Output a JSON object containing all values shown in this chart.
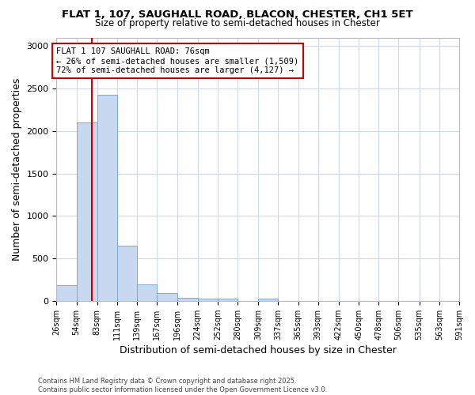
{
  "title1": "FLAT 1, 107, SAUGHALL ROAD, BLACON, CHESTER, CH1 5ET",
  "title2": "Size of property relative to semi-detached houses in Chester",
  "xlabel": "Distribution of semi-detached houses by size in Chester",
  "ylabel": "Number of semi-detached properties",
  "footer1": "Contains HM Land Registry data © Crown copyright and database right 2025.",
  "footer2": "Contains public sector information licensed under the Open Government Licence v3.0.",
  "annotation_title": "FLAT 1 107 SAUGHALL ROAD: 76sqm",
  "annotation_line2": "← 26% of semi-detached houses are smaller (1,509)",
  "annotation_line3": "72% of semi-detached houses are larger (4,127) →",
  "property_size": 76,
  "bar_color": "#c8d8f0",
  "bar_edge_color": "#7aaad4",
  "red_line_color": "#cc0000",
  "annotation_box_edge": "#cc0000",
  "background_color": "#ffffff",
  "grid_color": "#d0d8e8",
  "bins": [
    26,
    54,
    83,
    111,
    139,
    167,
    196,
    224,
    252,
    280,
    309,
    337,
    365,
    393,
    422,
    450,
    478,
    506,
    535,
    563,
    591
  ],
  "bin_labels": [
    "26sqm",
    "54sqm",
    "83sqm",
    "111sqm",
    "139sqm",
    "167sqm",
    "196sqm",
    "224sqm",
    "252sqm",
    "280sqm",
    "309sqm",
    "337sqm",
    "365sqm",
    "393sqm",
    "422sqm",
    "450sqm",
    "478sqm",
    "506sqm",
    "535sqm",
    "563sqm",
    "591sqm"
  ],
  "values": [
    185,
    2100,
    2430,
    650,
    195,
    90,
    40,
    25,
    25,
    0,
    25,
    0,
    0,
    0,
    0,
    0,
    0,
    0,
    0,
    0
  ],
  "ylim": [
    0,
    3100
  ],
  "yticks": [
    0,
    500,
    1000,
    1500,
    2000,
    2500,
    3000
  ]
}
